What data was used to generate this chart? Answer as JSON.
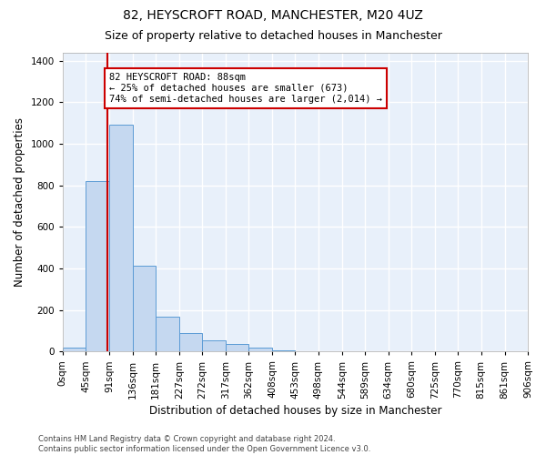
{
  "title1": "82, HEYSCROFT ROAD, MANCHESTER, M20 4UZ",
  "title2": "Size of property relative to detached houses in Manchester",
  "xlabel": "Distribution of detached houses by size in Manchester",
  "ylabel": "Number of detached properties",
  "bar_color": "#c5d8f0",
  "bar_edge_color": "#5b9bd5",
  "bg_color": "#e8f0fa",
  "grid_color": "#ffffff",
  "annotation_box_color": "#cc0000",
  "vline_color": "#cc0000",
  "bin_edges": [
    0,
    45,
    91,
    136,
    181,
    227,
    272,
    317,
    362,
    408,
    453,
    498,
    544,
    589,
    634,
    680,
    725,
    770,
    815,
    861,
    906
  ],
  "bar_heights": [
    20,
    820,
    1090,
    415,
    170,
    90,
    55,
    35,
    20,
    5,
    0,
    0,
    0,
    0,
    0,
    0,
    0,
    0,
    0,
    0
  ],
  "property_size": 88,
  "annotation_line1": "82 HEYSCROFT ROAD: 88sqm",
  "annotation_line2": "← 25% of detached houses are smaller (673)",
  "annotation_line3": "74% of semi-detached houses are larger (2,014) →",
  "ylim": [
    0,
    1440
  ],
  "yticks": [
    0,
    200,
    400,
    600,
    800,
    1000,
    1200,
    1400
  ],
  "footer_text": "Contains HM Land Registry data © Crown copyright and database right 2024.\nContains public sector information licensed under the Open Government Licence v3.0.",
  "title1_fontsize": 10,
  "title2_fontsize": 9,
  "xlabel_fontsize": 8.5,
  "ylabel_fontsize": 8.5,
  "tick_fontsize": 7.5,
  "annotation_fontsize": 7.5,
  "footer_fontsize": 6
}
